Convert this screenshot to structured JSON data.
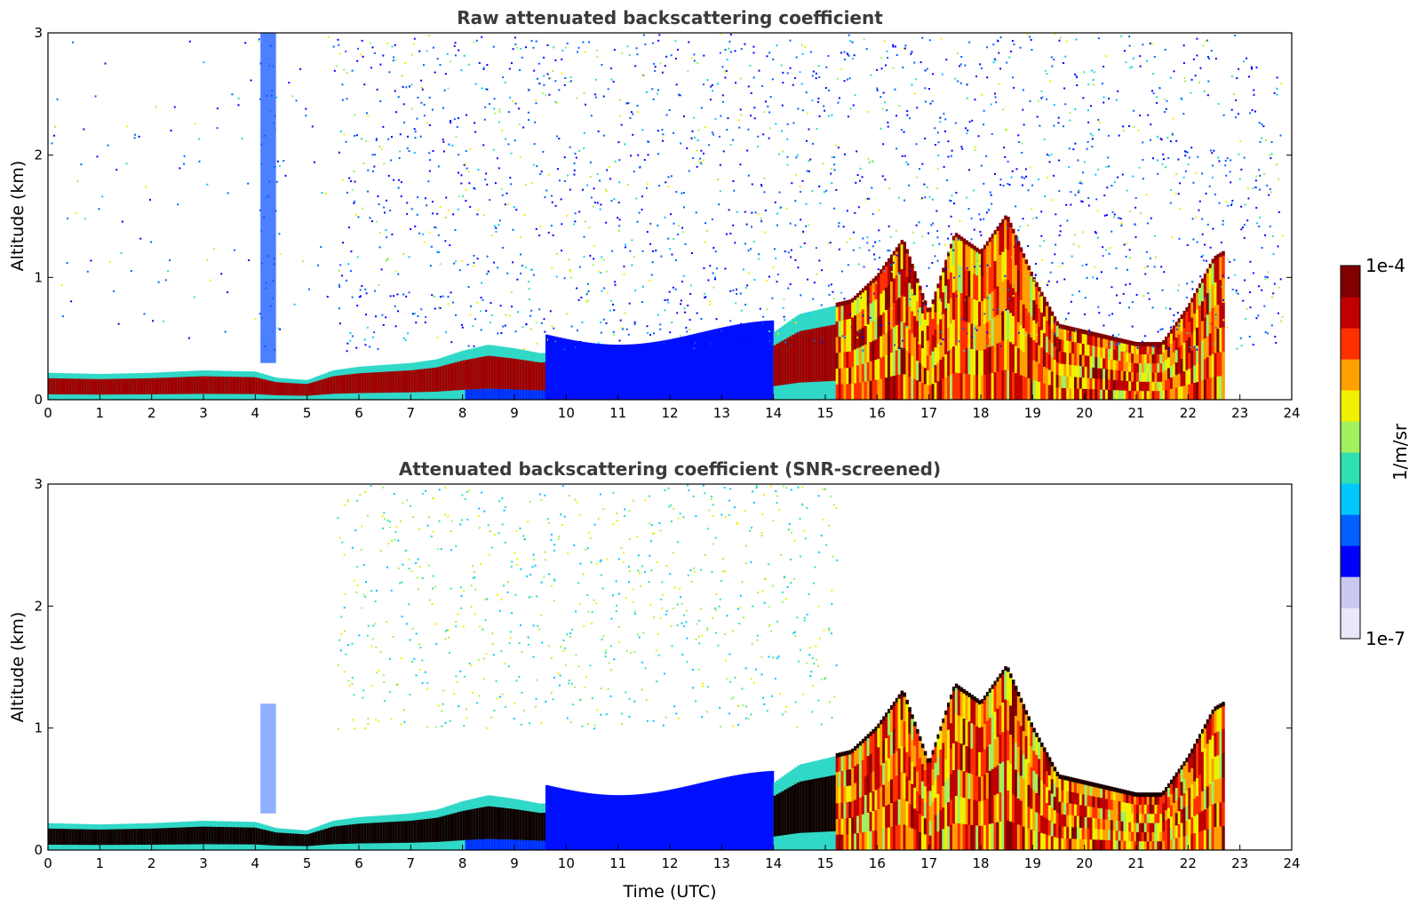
{
  "chart_data": [
    {
      "type": "heatmap",
      "title": "Raw attenuated backscattering coefficient",
      "xlabel": "",
      "ylabel": "Altitude (km)",
      "xlim": [
        0,
        24
      ],
      "ylim": [
        0,
        3
      ],
      "xticks": [
        0,
        1,
        2,
        3,
        4,
        5,
        6,
        7,
        8,
        9,
        10,
        11,
        12,
        13,
        14,
        15,
        16,
        17,
        18,
        19,
        20,
        21,
        22,
        23,
        24
      ],
      "yticks": [
        0,
        1,
        2,
        3
      ],
      "data_end_hour": 23.8,
      "screened": false,
      "layer_top_km": [
        [
          0,
          0.22
        ],
        [
          1,
          0.21
        ],
        [
          2,
          0.22
        ],
        [
          3,
          0.24
        ],
        [
          4,
          0.23
        ],
        [
          4.4,
          0.18
        ],
        [
          5,
          0.16
        ],
        [
          5.5,
          0.24
        ],
        [
          6,
          0.27
        ],
        [
          7,
          0.3
        ],
        [
          7.5,
          0.33
        ],
        [
          8,
          0.4
        ],
        [
          8.5,
          0.45
        ],
        [
          9,
          0.42
        ],
        [
          9.5,
          0.38
        ],
        [
          14,
          0.55
        ],
        [
          14.5,
          0.7
        ],
        [
          15,
          0.75
        ],
        [
          15.5,
          0.8
        ],
        [
          16,
          1.0
        ],
        [
          16.5,
          1.3
        ],
        [
          17,
          0.7
        ],
        [
          17.5,
          1.35
        ],
        [
          18,
          1.2
        ],
        [
          18.5,
          1.5
        ],
        [
          19,
          1.0
        ],
        [
          19.5,
          0.6
        ],
        [
          20,
          0.55
        ],
        [
          20.5,
          0.5
        ],
        [
          21,
          0.45
        ],
        [
          21.5,
          0.45
        ],
        [
          22,
          0.75
        ],
        [
          22.5,
          1.15
        ],
        [
          22.7,
          1.2
        ]
      ],
      "noise_region_km": [
        0.4,
        3.0
      ],
      "colorbar": {
        "label": "1/m/sr",
        "min_label": "1e-7",
        "max_label": "1e-4",
        "scale": "log"
      }
    },
    {
      "type": "heatmap",
      "title": "Attenuated backscattering coefficient (SNR-screened)",
      "xlabel": "Time (UTC)",
      "ylabel": "Altitude (km)",
      "xlim": [
        0,
        24
      ],
      "ylim": [
        0,
        3
      ],
      "xticks": [
        0,
        1,
        2,
        3,
        4,
        5,
        6,
        7,
        8,
        9,
        10,
        11,
        12,
        13,
        14,
        15,
        16,
        17,
        18,
        19,
        20,
        21,
        22,
        23,
        24
      ],
      "yticks": [
        0,
        1,
        2,
        3
      ],
      "data_end_hour": 23.8,
      "screened": true,
      "layer_top_km": [
        [
          0,
          0.22
        ],
        [
          1,
          0.21
        ],
        [
          2,
          0.22
        ],
        [
          3,
          0.24
        ],
        [
          4,
          0.23
        ],
        [
          4.4,
          0.18
        ],
        [
          5,
          0.16
        ],
        [
          5.5,
          0.24
        ],
        [
          6,
          0.27
        ],
        [
          7,
          0.3
        ],
        [
          7.5,
          0.33
        ],
        [
          8,
          0.4
        ],
        [
          8.5,
          0.45
        ],
        [
          9,
          0.42
        ],
        [
          9.5,
          0.38
        ],
        [
          14,
          0.55
        ],
        [
          14.5,
          0.7
        ],
        [
          15,
          0.75
        ],
        [
          15.5,
          0.8
        ],
        [
          16,
          1.0
        ],
        [
          16.5,
          1.3
        ],
        [
          17,
          0.7
        ],
        [
          17.5,
          1.35
        ],
        [
          18,
          1.2
        ],
        [
          18.5,
          1.5
        ],
        [
          19,
          1.0
        ],
        [
          19.5,
          0.6
        ],
        [
          20,
          0.55
        ],
        [
          20.5,
          0.5
        ],
        [
          21,
          0.45
        ],
        [
          21.5,
          0.45
        ],
        [
          22,
          0.75
        ],
        [
          22.5,
          1.15
        ],
        [
          22.7,
          1.2
        ]
      ],
      "noise_region_km": [
        1.0,
        3.0
      ],
      "colorbar": {
        "label": "1/m/sr",
        "min_label": "1e-7",
        "max_label": "1e-4",
        "scale": "log"
      }
    }
  ],
  "colorbar": {
    "label": "1/m/sr",
    "min_label": "1e-7",
    "max_label": "1e-4",
    "colors": [
      "#e8e8f8",
      "#c8c8f0",
      "#0000ff",
      "#0060ff",
      "#00c8ff",
      "#30e0b0",
      "#a0f060",
      "#f0f000",
      "#ffa000",
      "#ff3000",
      "#c00000",
      "#800000"
    ]
  }
}
